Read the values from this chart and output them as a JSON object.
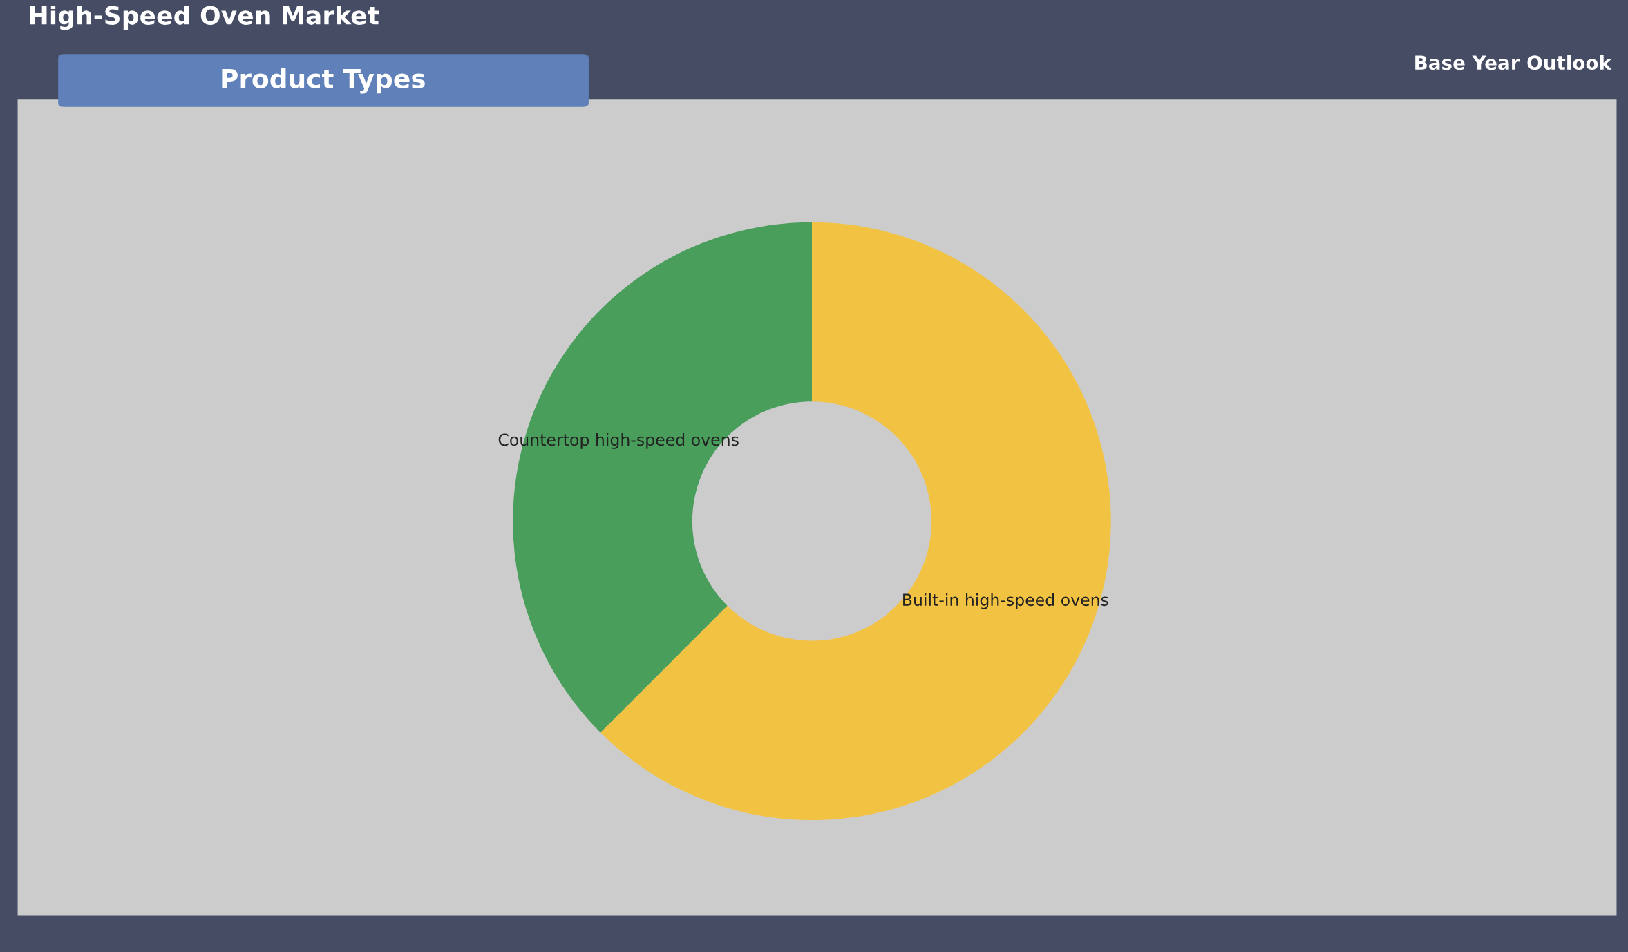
{
  "chart_data": {
    "type": "donut",
    "title": "High-Speed Oven Market",
    "subtitle": "Product Types",
    "annotations": [
      "Base Year Outlook"
    ],
    "categories": [
      "Built-in high-speed ovens",
      "Countertop high-speed ovens"
    ],
    "values": [
      62.5,
      37.5
    ],
    "colors": [
      "#f2c343",
      "#4a9e5c"
    ],
    "legend": false
  }
}
